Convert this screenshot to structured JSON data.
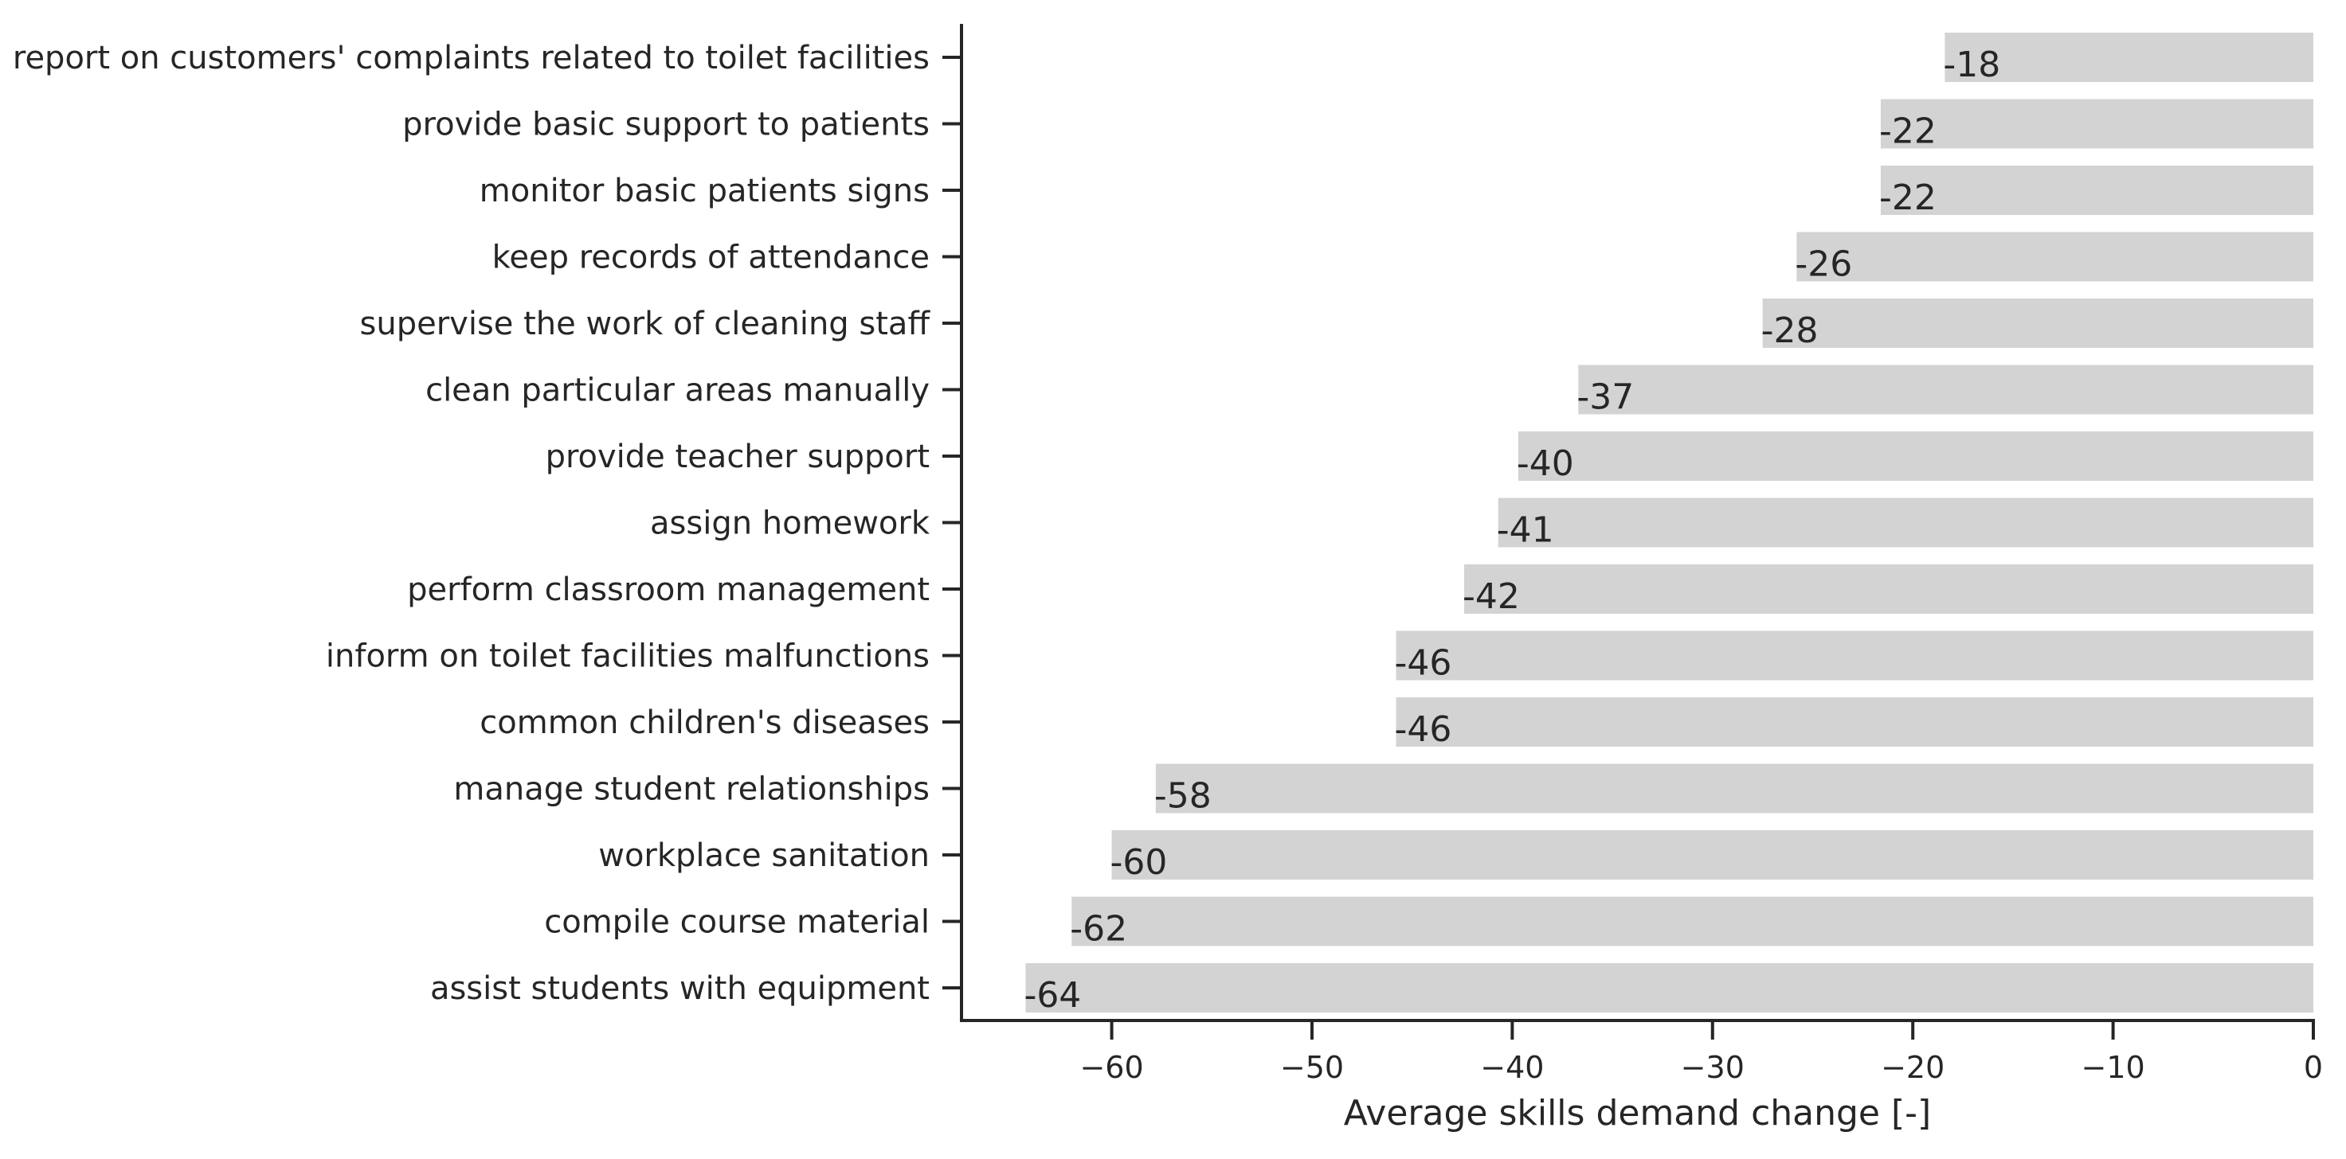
{
  "chart_data": {
    "type": "bar",
    "orientation": "horizontal",
    "categories": [
      "report on customers' complaints related to toilet facilities",
      "provide basic support to patients",
      "monitor basic patients signs",
      "keep records of attendance",
      "supervise the work of cleaning staff",
      "clean particular areas manually",
      "provide teacher support",
      "assign homework",
      "perform classroom management",
      "inform on toilet facilities malfunctions",
      "common children's diseases",
      "manage student relationships",
      "workplace sanitation",
      "compile course material",
      "assist students with equipment"
    ],
    "values": [
      -18.4,
      -21.6,
      -21.6,
      -25.8,
      -27.5,
      -36.7,
      -39.7,
      -40.7,
      -42.4,
      -45.8,
      -45.8,
      -57.8,
      -60.0,
      -62.0,
      -64.3
    ],
    "value_labels": [
      "-18",
      "-22",
      "-22",
      "-26",
      "-28",
      "-37",
      "-40",
      "-41",
      "-42",
      "-46",
      "-46",
      "-58",
      "-60",
      "-62",
      "-64"
    ],
    "xlabel": "Average skills demand change [-]",
    "ylabel": "",
    "xlim": [
      -67.5,
      0
    ],
    "xticks": [
      -60,
      -50,
      -40,
      -30,
      -20,
      -10,
      0
    ],
    "xtick_labels": [
      "−60",
      "−50",
      "−40",
      "−30",
      "−20",
      "−10",
      "0"
    ],
    "grid": false,
    "bar_color": "#d3d3d3",
    "axis_color": "#262626",
    "text_color": "#262626"
  }
}
